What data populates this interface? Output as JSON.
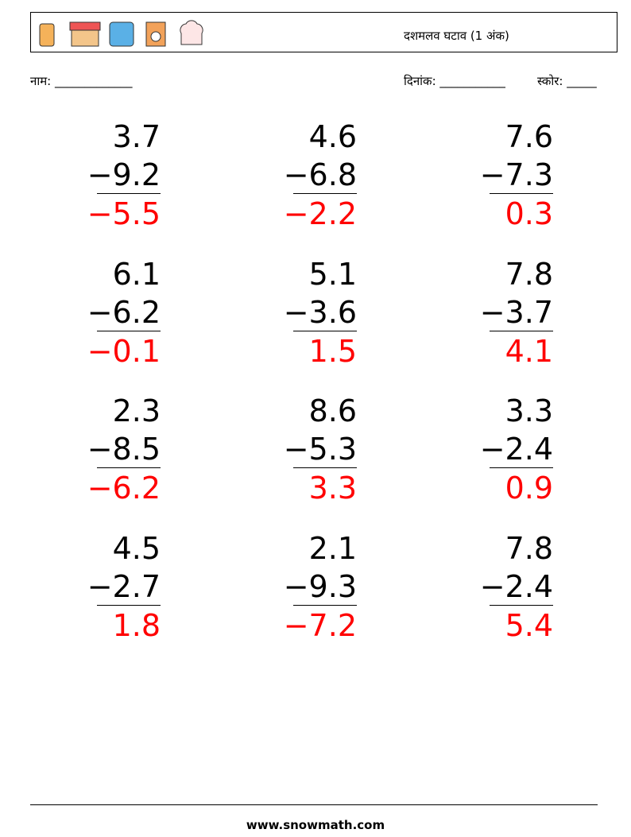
{
  "header": {
    "title": "दशमलव घटाव (1 अंक)"
  },
  "fields": {
    "name": "नाम: _____________",
    "date": "दिनांक: ___________",
    "score": "स्कोर: _____"
  },
  "problems": [
    {
      "top": "3.7",
      "bottom": "−9.2",
      "answer": "−5.5"
    },
    {
      "top": "4.6",
      "bottom": "−6.8",
      "answer": "−2.2"
    },
    {
      "top": "7.6",
      "bottom": "−7.3",
      "answer": "0.3"
    },
    {
      "top": "6.1",
      "bottom": "−6.2",
      "answer": "−0.1"
    },
    {
      "top": "5.1",
      "bottom": "−3.6",
      "answer": "1.5"
    },
    {
      "top": "7.8",
      "bottom": "−3.7",
      "answer": "4.1"
    },
    {
      "top": "2.3",
      "bottom": "−8.5",
      "answer": "−6.2"
    },
    {
      "top": "8.6",
      "bottom": "−5.3",
      "answer": "3.3"
    },
    {
      "top": "3.3",
      "bottom": "−2.4",
      "answer": "0.9"
    },
    {
      "top": "4.5",
      "bottom": "−2.7",
      "answer": "1.8"
    },
    {
      "top": "2.1",
      "bottom": "−9.3",
      "answer": "−7.2"
    },
    {
      "top": "7.8",
      "bottom": "−2.4",
      "answer": "5.4"
    }
  ],
  "footer": {
    "site": "www.snowmath.com"
  }
}
